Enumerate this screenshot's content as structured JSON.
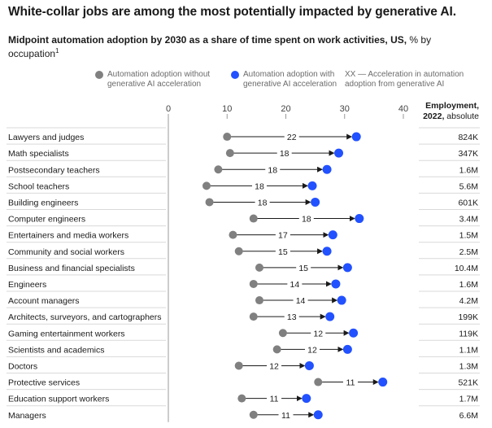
{
  "title": "White-collar jobs are among the most potentially impacted by generative AI.",
  "subtitle_bold": "Midpoint automation adoption by 2030 as a share of time spent on work activities, US,",
  "subtitle_rest": " % by occupation",
  "subtitle_footnote": "1",
  "legend": {
    "without": {
      "label_line1": "Automation adoption without",
      "label_line2": "generative AI acceleration",
      "color": "#808080",
      "icon": "gray-dot-icon"
    },
    "with": {
      "label_line1": "Automation adoption with",
      "label_line2": "generative AI acceleration",
      "color": "#2251ff",
      "icon": "blue-dot-icon"
    },
    "accel": {
      "label_line1": "XX — Acceleration in automation",
      "label_line2": "adoption from generative AI"
    }
  },
  "employment_header_line1": "Employment,",
  "employment_header_line2_bold": "2022,",
  "employment_header_line2_rest": " absolute",
  "chart_data": {
    "type": "dumbbell",
    "xlim": [
      0,
      40
    ],
    "xticks": [
      "0",
      "10",
      "20",
      "30",
      "40"
    ],
    "series": [
      {
        "name": "Automation adoption without generative AI acceleration",
        "color": "#808080"
      },
      {
        "name": "Automation adoption with generative AI acceleration",
        "color": "#2251ff"
      }
    ],
    "rows": [
      {
        "label": "Lawyers and judges",
        "without": 10,
        "with": 32,
        "accel": "22",
        "employment": "824K"
      },
      {
        "label": "Math specialists",
        "without": 10.5,
        "with": 29,
        "accel": "18",
        "employment": "347K"
      },
      {
        "label": "Postsecondary teachers",
        "without": 8.5,
        "with": 27,
        "accel": "18",
        "employment": "1.6M"
      },
      {
        "label": "School teachers",
        "without": 6.5,
        "with": 24.5,
        "accel": "18",
        "employment": "5.6M"
      },
      {
        "label": "Building engineers",
        "without": 7,
        "with": 25,
        "accel": "18",
        "employment": "601K"
      },
      {
        "label": "Computer engineers",
        "without": 14.5,
        "with": 32.5,
        "accel": "18",
        "employment": "3.4M"
      },
      {
        "label": "Entertainers and media workers",
        "without": 11,
        "with": 28,
        "accel": "17",
        "employment": "1.5M"
      },
      {
        "label": "Community and social workers",
        "without": 12,
        "with": 27,
        "accel": "15",
        "employment": "2.5M"
      },
      {
        "label": "Business and financial specialists",
        "without": 15.5,
        "with": 30.5,
        "accel": "15",
        "employment": "10.4M"
      },
      {
        "label": "Engineers",
        "without": 14.5,
        "with": 28.5,
        "accel": "14",
        "employment": "1.6M"
      },
      {
        "label": "Account managers",
        "without": 15.5,
        "with": 29.5,
        "accel": "14",
        "employment": "4.2M"
      },
      {
        "label": "Architects, surveyors, and cartographers",
        "without": 14.5,
        "with": 27.5,
        "accel": "13",
        "employment": "199K"
      },
      {
        "label": "Gaming entertainment workers",
        "without": 19.5,
        "with": 31.5,
        "accel": "12",
        "employment": "119K"
      },
      {
        "label": "Scientists and academics",
        "without": 18.5,
        "with": 30.5,
        "accel": "12",
        "employment": "1.1M"
      },
      {
        "label": "Doctors",
        "without": 12,
        "with": 24,
        "accel": "12",
        "employment": "1.3M"
      },
      {
        "label": "Protective services",
        "without": 25.5,
        "with": 36.5,
        "accel": "11",
        "employment": "521K"
      },
      {
        "label": "Education support workers",
        "without": 12.5,
        "with": 23.5,
        "accel": "11",
        "employment": "1.7M"
      },
      {
        "label": "Managers",
        "without": 14.5,
        "with": 25.5,
        "accel": "11",
        "employment": "6.6M"
      }
    ]
  }
}
